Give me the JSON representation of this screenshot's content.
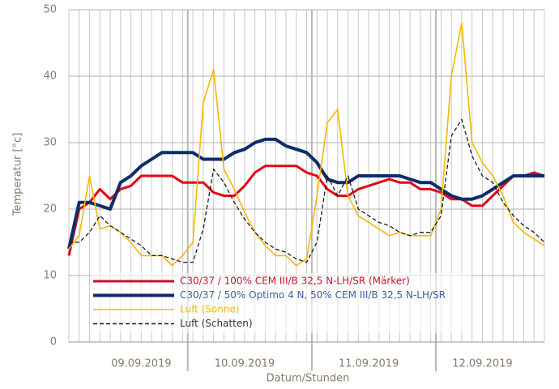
{
  "chart_data": {
    "type": "line",
    "y_label": "Temperatur [°c]",
    "x_label": "Datum/Stunden",
    "categories": [
      null,
      null,
      null,
      null,
      null,
      null,
      null,
      "09.09.2019",
      null,
      null,
      null,
      null,
      null,
      null,
      null,
      null,
      null,
      "10.09.2019",
      null,
      null,
      null,
      null,
      null,
      null,
      null,
      null,
      null,
      null,
      null,
      "11.09.2019",
      null,
      null,
      null,
      null,
      null,
      null,
      null,
      null,
      null,
      null,
      "12.09.2019",
      null,
      null,
      null,
      null,
      null,
      null
    ],
    "ylim": [
      0,
      50
    ],
    "yticks": [
      0,
      10,
      20,
      30,
      40,
      50
    ],
    "grid": true,
    "legend": "lower left",
    "series": [
      {
        "name": "C30/37 / 100% CEM III/B 32,5 N-LH/SR (Märker)",
        "color": "#e30613",
        "legend_color": "#c8102e",
        "width": 3,
        "values": [
          13,
          20,
          21,
          23,
          21.5,
          23,
          23.5,
          25,
          25,
          25,
          25,
          24,
          24,
          24,
          22.5,
          22,
          22,
          23.5,
          25.5,
          26.5,
          26.5,
          26.5,
          26.5,
          25.5,
          25,
          23,
          22,
          22,
          23,
          23.5,
          24,
          24.5,
          24,
          24,
          23,
          23,
          22.5,
          21.5,
          21.5,
          20.5,
          20.5,
          22,
          23.5,
          25,
          25,
          25.5,
          25
        ]
      },
      {
        "name": "C30/37 / 50% Optimo 4 N, 50% CEM III/B 32,5 N-LH/SR",
        "color": "#0d2c6c",
        "width": 4,
        "values": [
          14,
          21,
          21,
          20.5,
          20,
          24,
          25,
          26.5,
          27.5,
          28.5,
          28.5,
          28.5,
          28.5,
          27.5,
          27.5,
          27.5,
          28.5,
          29,
          30,
          30.5,
          30.5,
          29.5,
          29,
          28.5,
          27,
          24.5,
          24,
          24,
          25,
          25,
          25,
          25,
          25,
          24.5,
          24,
          24,
          23,
          22,
          21.5,
          21.5,
          22,
          23,
          24,
          25,
          25,
          25,
          25
        ]
      },
      {
        "name": "Luft (Sonne)",
        "color": "#f5b800",
        "width": 1.6,
        "values": [
          14,
          16,
          25,
          17,
          17.5,
          16.5,
          15,
          13,
          13,
          13,
          11.5,
          13,
          15,
          36,
          41,
          26,
          23,
          19.5,
          16.5,
          14.5,
          13,
          13,
          11.5,
          12.5,
          22,
          33,
          35,
          22,
          19,
          18,
          17,
          16,
          16.5,
          16,
          16,
          16,
          20,
          40,
          48,
          30,
          27,
          25,
          22,
          18,
          16.5,
          15.5,
          14.5
        ]
      },
      {
        "name": "Luft (Schatten)",
        "color": "#1a1a1a",
        "width": 1.3,
        "dashed": true,
        "values": [
          15,
          15,
          16.5,
          19,
          17.5,
          16.5,
          15.5,
          14.5,
          13,
          13,
          12.5,
          12,
          12,
          17,
          26,
          24,
          21,
          18.5,
          16.5,
          15,
          14,
          13.5,
          12.5,
          12,
          15,
          25,
          22,
          25,
          20,
          19,
          18,
          17.5,
          16.5,
          16,
          16.5,
          16.5,
          19,
          31,
          33.5,
          28,
          25,
          24,
          21,
          19,
          17.5,
          16.5,
          15
        ]
      }
    ]
  }
}
